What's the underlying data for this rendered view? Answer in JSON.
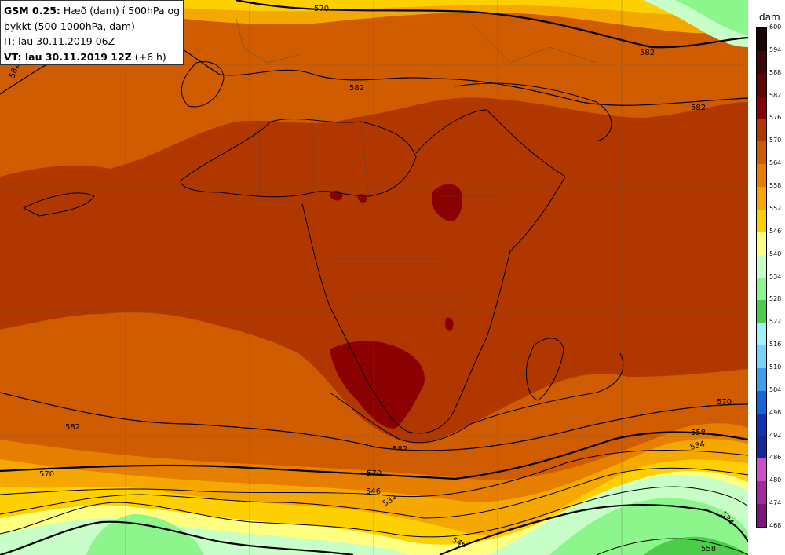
{
  "title": {
    "model": "GSM 0.25:",
    "desc_1": "Hæð (dam) í 500hPa og",
    "desc_2": "þykkt (500-1000hPa, dam)",
    "init": "IT: lau 30.11.2019 06Z",
    "valid_prefix": "VT: lau 30.11.2019 12Z",
    "valid_suffix": "(+6 h)"
  },
  "legend": {
    "unit": "dam",
    "levels": [
      "600",
      "594",
      "588",
      "582",
      "576",
      "570",
      "564",
      "558",
      "552",
      "546",
      "540",
      "534",
      "528",
      "522",
      "516",
      "510",
      "504",
      "498",
      "492",
      "486",
      "480",
      "474",
      "468"
    ],
    "colors": [
      "#1a0505",
      "#3d0808",
      "#5c0606",
      "#8b0000",
      "#b03800",
      "#cf5c00",
      "#e67e00",
      "#f5a800",
      "#ffd000",
      "#ffff80",
      "#c8ffc8",
      "#8cf58c",
      "#4bcc4b",
      "#a0f0ff",
      "#78d2ff",
      "#3ca0f0",
      "#1464dc",
      "#1432b4",
      "#142896",
      "#c850c8",
      "#a028a0",
      "#7d147d",
      "#500a50"
    ]
  },
  "contours": {
    "height_labels": [
      "570",
      "582",
      "582",
      "582",
      "582",
      "582",
      "582",
      "570",
      "570",
      "570",
      "558",
      "546",
      "534",
      "534",
      "546",
      "558"
    ]
  }
}
